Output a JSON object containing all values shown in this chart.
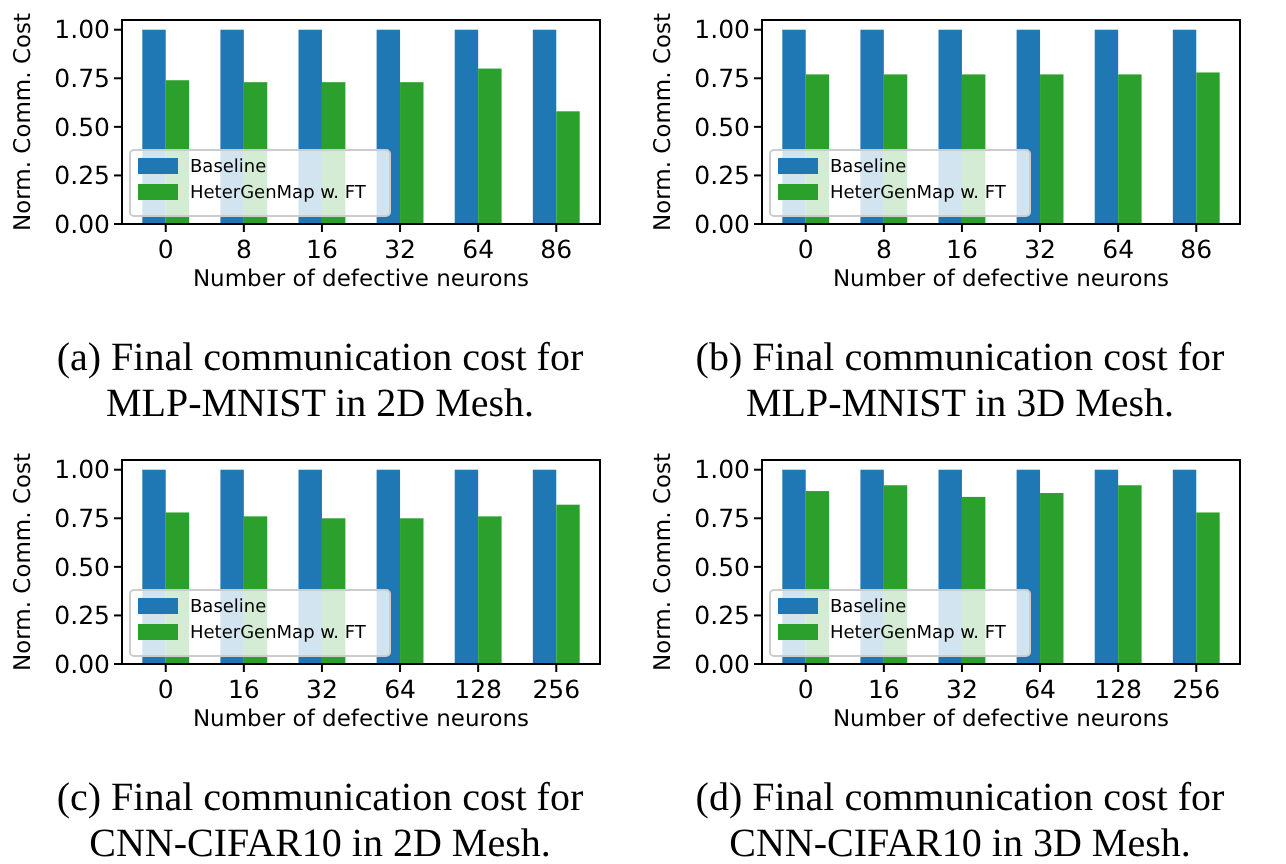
{
  "chart_data": [
    {
      "type": "bar",
      "title": "(a) Final communication cost for MLP-MNIST in 2D Mesh.",
      "xlabel": "Number of defective neurons",
      "ylabel": "Norm. Comm. Cost",
      "categories": [
        "0",
        "8",
        "16",
        "32",
        "64",
        "86"
      ],
      "series": [
        {
          "name": "Baseline",
          "color": "#1f77b4",
          "values": [
            1,
            1,
            1,
            1,
            1,
            1
          ]
        },
        {
          "name": "HeterGenMap w. FT",
          "color": "#2ca02c",
          "values": [
            0.74,
            0.73,
            0.73,
            0.73,
            0.8,
            0.58
          ]
        }
      ],
      "ylim": [
        0,
        1.05
      ],
      "yticks": [
        {
          "value": 0,
          "label": "0.00"
        },
        {
          "value": 0.25,
          "label": "0.25"
        },
        {
          "value": 0.5,
          "label": "0.50"
        },
        {
          "value": 0.75,
          "label": "0.75"
        },
        {
          "value": 1,
          "label": "1.00"
        }
      ],
      "legend": "bottom left"
    },
    {
      "type": "bar",
      "title": "(b) Final communication cost for MLP-MNIST in 3D Mesh.",
      "xlabel": "Number of defective neurons",
      "ylabel": "Norm. Comm. Cost",
      "categories": [
        "0",
        "8",
        "16",
        "32",
        "64",
        "86"
      ],
      "series": [
        {
          "name": "Baseline",
          "color": "#1f77b4",
          "values": [
            1,
            1,
            1,
            1,
            1,
            1
          ]
        },
        {
          "name": "HeterGenMap w. FT",
          "color": "#2ca02c",
          "values": [
            0.77,
            0.77,
            0.77,
            0.77,
            0.77,
            0.78
          ]
        }
      ],
      "ylim": [
        0,
        1.05
      ],
      "yticks": [
        {
          "value": 0,
          "label": "0.00"
        },
        {
          "value": 0.25,
          "label": "0.25"
        },
        {
          "value": 0.5,
          "label": "0.50"
        },
        {
          "value": 0.75,
          "label": "0.75"
        },
        {
          "value": 1,
          "label": "1.00"
        }
      ],
      "legend": "bottom left"
    },
    {
      "type": "bar",
      "title": "(c) Final communication cost for CNN-CIFAR10 in 2D Mesh.",
      "xlabel": "Number of defective neurons",
      "ylabel": "Norm. Comm. Cost",
      "categories": [
        "0",
        "16",
        "32",
        "64",
        "128",
        "256"
      ],
      "series": [
        {
          "name": "Baseline",
          "color": "#1f77b4",
          "values": [
            1,
            1,
            1,
            1,
            1,
            1
          ]
        },
        {
          "name": "HeterGenMap w. FT",
          "color": "#2ca02c",
          "values": [
            0.78,
            0.76,
            0.75,
            0.75,
            0.76,
            0.82
          ]
        }
      ],
      "ylim": [
        0,
        1.05
      ],
      "yticks": [
        {
          "value": 0,
          "label": "0.00"
        },
        {
          "value": 0.25,
          "label": "0.25"
        },
        {
          "value": 0.5,
          "label": "0.50"
        },
        {
          "value": 0.75,
          "label": "0.75"
        },
        {
          "value": 1,
          "label": "1.00"
        }
      ],
      "legend": "bottom left"
    },
    {
      "type": "bar",
      "title": "(d) Final communication cost for CNN-CIFAR10 in 3D Mesh.",
      "xlabel": "Number of defective neurons",
      "ylabel": "Norm. Comm. Cost",
      "categories": [
        "0",
        "16",
        "32",
        "64",
        "128",
        "256"
      ],
      "series": [
        {
          "name": "Baseline",
          "color": "#1f77b4",
          "values": [
            1,
            1,
            1,
            1,
            1,
            1
          ]
        },
        {
          "name": "HeterGenMap w. FT",
          "color": "#2ca02c",
          "values": [
            0.89,
            0.92,
            0.86,
            0.88,
            0.92,
            0.78
          ]
        }
      ],
      "ylim": [
        0,
        1.05
      ],
      "yticks": [
        {
          "value": 0,
          "label": "0.00"
        },
        {
          "value": 0.25,
          "label": "0.25"
        },
        {
          "value": 0.5,
          "label": "0.50"
        },
        {
          "value": 0.75,
          "label": "0.75"
        },
        {
          "value": 1,
          "label": "1.00"
        }
      ],
      "legend": "bottom left"
    }
  ]
}
